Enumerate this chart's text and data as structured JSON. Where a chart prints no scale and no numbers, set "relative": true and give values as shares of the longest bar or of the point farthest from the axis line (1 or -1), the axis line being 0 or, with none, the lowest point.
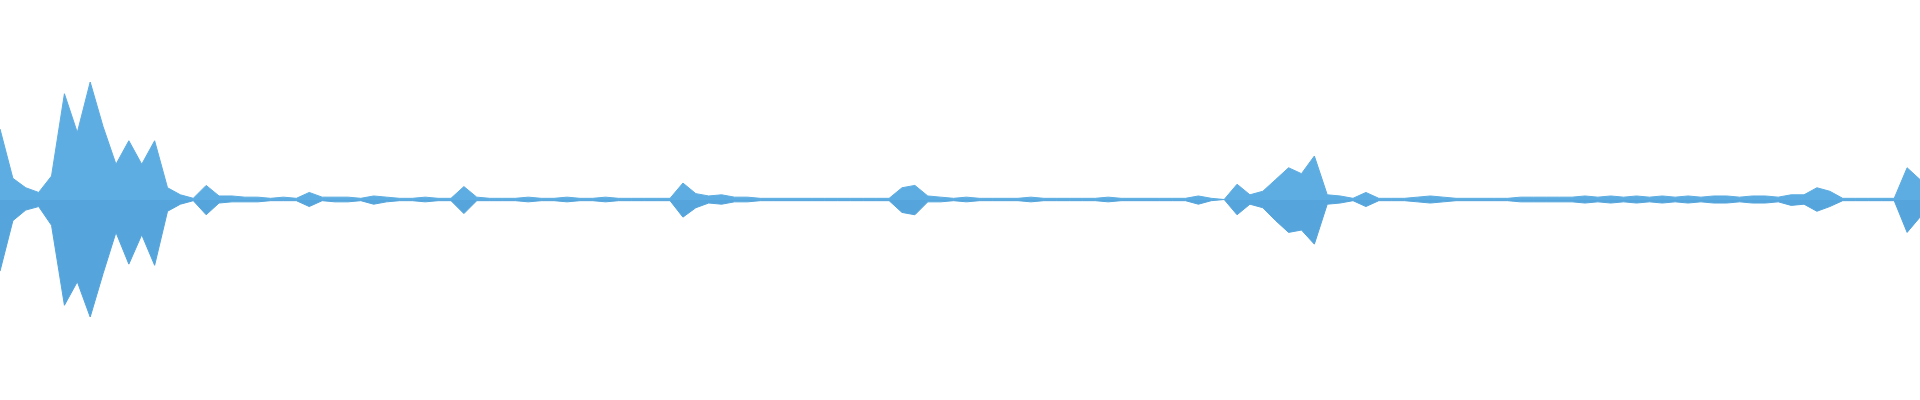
{
  "chart_data": {
    "type": "area",
    "relative": true,
    "categories": [
      null,
      null,
      null,
      null,
      null,
      null,
      null,
      null,
      null,
      null,
      null,
      null,
      null,
      null,
      null,
      null,
      null,
      null,
      null,
      null,
      null,
      null,
      null,
      null,
      null,
      null,
      null,
      null,
      null,
      null,
      null,
      null,
      null,
      null,
      null,
      null,
      null,
      null,
      null,
      null,
      null,
      null,
      null,
      null,
      null,
      null,
      null,
      null,
      null,
      null,
      null,
      null,
      null,
      null,
      null,
      null,
      null,
      null,
      null,
      null,
      null,
      null,
      null,
      null,
      null,
      null,
      null,
      null,
      null,
      null,
      null,
      null,
      null,
      null,
      null,
      null,
      null,
      null,
      null,
      null,
      null,
      null,
      null,
      null,
      null,
      null,
      null,
      null,
      null,
      null,
      null,
      null,
      null,
      null,
      null,
      null,
      null,
      null,
      null,
      null,
      null,
      null,
      null,
      null,
      null,
      null,
      null,
      null,
      null,
      null,
      null,
      null,
      null,
      null,
      null,
      null,
      null,
      null,
      null,
      null,
      null,
      null,
      null,
      null,
      null,
      null,
      null,
      null,
      null,
      null,
      null,
      null,
      null,
      null,
      null,
      null,
      null,
      null,
      null,
      null,
      null,
      null,
      null,
      null,
      null,
      null,
      null,
      null,
      null,
      null
    ],
    "series": [
      {
        "color": "#5dade2",
        "values": [
          0.6,
          0.18,
          0.1,
          0.06,
          0.2,
          0.9,
          0.57,
          1,
          0.62,
          0.3,
          0.5,
          0.3,
          0.5,
          0.1,
          0.04,
          0.01,
          0.12,
          0.03,
          0.03,
          0.02,
          0.02,
          0.01,
          0.02,
          0.01,
          0.06,
          0.02,
          0.02,
          0.02,
          0.01,
          0.03,
          0.02,
          0.01,
          0.01,
          0.02,
          0.01,
          0.01,
          0.11,
          0.02,
          0.01,
          0.01,
          0.01,
          0.02,
          0.01,
          0.01,
          0.02,
          0.01,
          0.01,
          0.02,
          0.01,
          0.01,
          0.01,
          0.01,
          0.01,
          0.14,
          0.05,
          0.03,
          0.04,
          0.02,
          0.02,
          0.01,
          0.01,
          0.01,
          0.01,
          0.01,
          0.01,
          0.01,
          0.01,
          0.01,
          0.01,
          0.01,
          0.1,
          0.12,
          0.03,
          0.02,
          0.01,
          0.02,
          0.01,
          0.01,
          0.01,
          0.01,
          0.02,
          0.01,
          0.01,
          0.01,
          0.01,
          0.01,
          0.02,
          0.01,
          0.01,
          0.01,
          0.01,
          0.01,
          0.01,
          0.03,
          0.01,
          0,
          0.13,
          0.04,
          0.07,
          0.17,
          0.27,
          0.22,
          0.37,
          0.04,
          0.03,
          0.01,
          0.06,
          0.01,
          0.01,
          0.01,
          0.02,
          0.03,
          0.02,
          0.01,
          0.01,
          0.01,
          0.01,
          0.01,
          0.02,
          0.02,
          0.02,
          0.02,
          0.02,
          0.03,
          0.02,
          0.03,
          0.02,
          0.03,
          0.02,
          0.03,
          0.02,
          0.03,
          0.02,
          0.03,
          0.03,
          0.02,
          0.03,
          0.03,
          0.02,
          0.04,
          0.04,
          0.1,
          0.07,
          0.01,
          0.01,
          0.01,
          0.01,
          0.01,
          0.27,
          0.17
        ]
      },
      {
        "color": "#55a5dc",
        "values": [
          -0.61,
          -0.18,
          -0.09,
          -0.06,
          -0.22,
          -0.9,
          -0.7,
          -1,
          -0.63,
          -0.28,
          -0.55,
          -0.3,
          -0.56,
          -0.1,
          -0.04,
          -0.01,
          -0.13,
          -0.03,
          -0.02,
          -0.02,
          -0.02,
          -0.01,
          -0.01,
          -0.01,
          -0.06,
          -0.01,
          -0.02,
          -0.02,
          -0.01,
          -0.04,
          -0.02,
          -0.01,
          -0.01,
          -0.02,
          -0.01,
          -0.01,
          -0.12,
          -0.01,
          -0.01,
          -0.01,
          -0.01,
          -0.02,
          -0.01,
          -0.01,
          -0.02,
          -0.01,
          -0.01,
          -0.02,
          -0.01,
          -0.01,
          -0.01,
          -0.01,
          -0.01,
          -0.15,
          -0.07,
          -0.03,
          -0.04,
          -0.02,
          -0.02,
          -0.01,
          -0.01,
          -0.01,
          -0.01,
          -0.01,
          -0.01,
          -0.01,
          -0.01,
          -0.01,
          -0.01,
          -0.01,
          -0.11,
          -0.13,
          -0.02,
          -0.02,
          -0.01,
          -0.02,
          -0.01,
          -0.01,
          -0.01,
          -0.01,
          -0.02,
          -0.01,
          -0.01,
          -0.01,
          -0.01,
          -0.01,
          -0.02,
          -0.01,
          -0.01,
          -0.01,
          -0.01,
          -0.01,
          -0.01,
          -0.04,
          -0.01,
          0,
          -0.13,
          -0.04,
          -0.07,
          -0.18,
          -0.28,
          -0.26,
          -0.38,
          -0.04,
          -0.03,
          -0.01,
          -0.06,
          -0.01,
          -0.01,
          -0.01,
          -0.02,
          -0.03,
          -0.02,
          -0.01,
          -0.01,
          -0.01,
          -0.01,
          -0.01,
          -0.02,
          -0.02,
          -0.02,
          -0.02,
          -0.02,
          -0.03,
          -0.02,
          -0.03,
          -0.02,
          -0.03,
          -0.02,
          -0.03,
          -0.02,
          -0.03,
          -0.02,
          -0.03,
          -0.03,
          -0.02,
          -0.03,
          -0.03,
          -0.02,
          -0.05,
          -0.04,
          -0.1,
          -0.06,
          -0.01,
          -0.01,
          -0.01,
          -0.01,
          -0.01,
          -0.28,
          -0.15
        ]
      }
    ],
    "ref_lines": [
      {
        "axis": "y",
        "value": 0,
        "color": "#5dade2"
      }
    ]
  }
}
